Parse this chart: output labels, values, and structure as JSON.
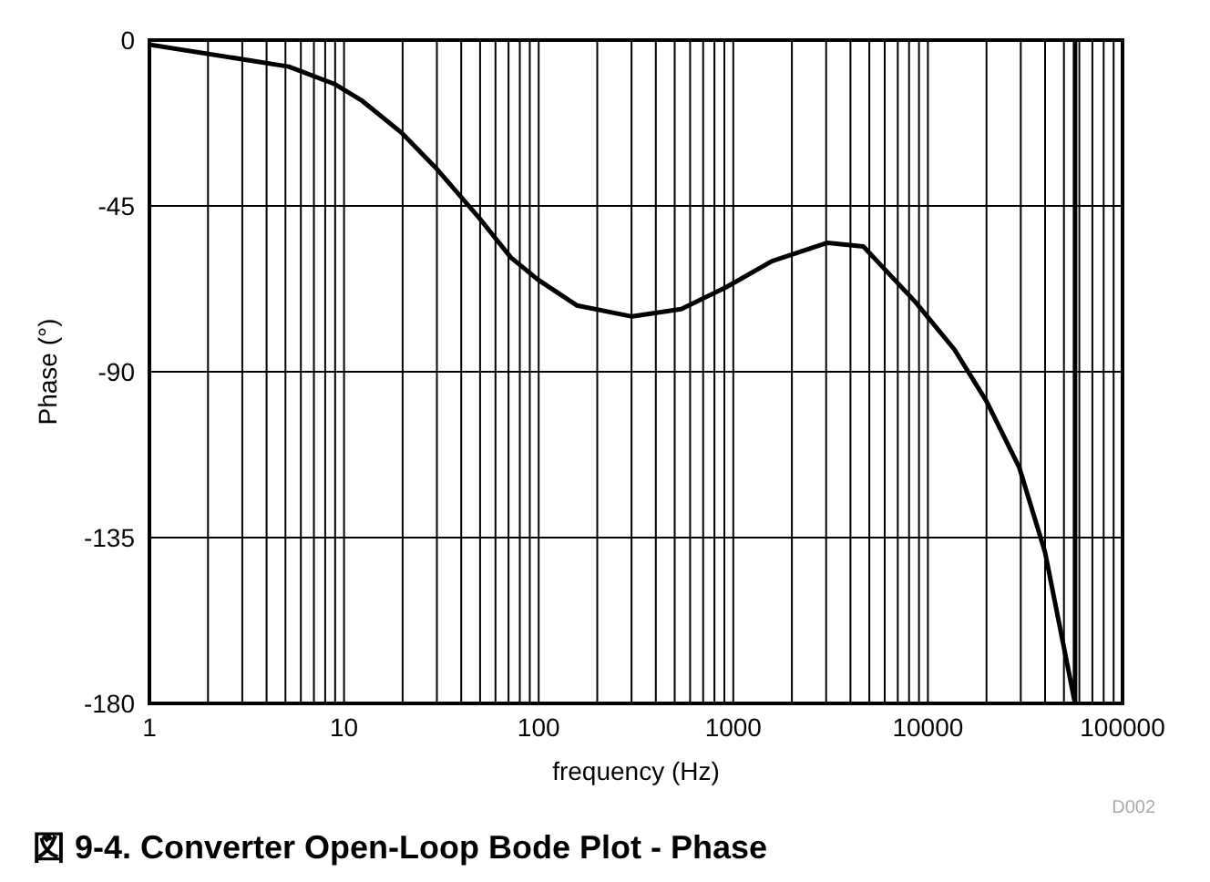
{
  "chart_data": {
    "type": "line",
    "title": "図 9-4. Converter Open-Loop Bode Plot - Phase",
    "xlabel": "frequency (Hz)",
    "ylabel": "Phase (°)",
    "annotations": [
      "D002"
    ],
    "log": "x",
    "grid": true,
    "legend": false,
    "marker": "none",
    "line_style": "solid",
    "xlim": [
      1,
      100000
    ],
    "xticks": [
      1,
      10,
      100,
      1000,
      10000,
      100000
    ],
    "ylim": [
      -180,
      0
    ],
    "yticks": [
      0,
      -45,
      -90,
      -135,
      -180
    ],
    "x": [
      1,
      5.2,
      9,
      12.4,
      19.6,
      30,
      49,
      72,
      99,
      157,
      302,
      540,
      923,
      1580,
      3050,
      4660,
      8600,
      13700,
      20000,
      29500,
      40000,
      57000,
      57000
    ],
    "series": [
      {
        "color": "#000000",
        "values": [
          -1.2,
          -7.2,
          -12,
          -16.5,
          -25,
          -35,
          -48,
          -59,
          -65,
          -72,
          -75,
          -73,
          -67,
          -60,
          -55,
          -56,
          -71,
          -84,
          -98,
          -116,
          -139,
          -180,
          0
        ]
      }
    ]
  }
}
